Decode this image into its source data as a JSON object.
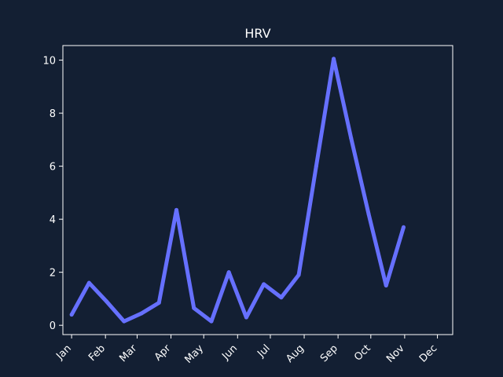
{
  "chart_data": {
    "type": "line",
    "title": "HRV",
    "xlabel": "",
    "ylabel": "",
    "x_tick_labels": [
      "Jan",
      "Feb",
      "Mar",
      "Apr",
      "May",
      "Jun",
      "Jul",
      "Aug",
      "Sep",
      "Oct",
      "Nov",
      "Dec"
    ],
    "y_ticks": [
      0,
      2,
      4,
      6,
      8,
      10
    ],
    "ylim": [
      -0.35,
      10.55
    ],
    "xlim": [
      "2023-12-24",
      "2024-12-15"
    ],
    "grid": false,
    "legend": "none",
    "series": [
      {
        "color": "#6670ff",
        "points": [
          {
            "date": "2024-01-01",
            "value": 0.4
          },
          {
            "date": "2024-01-17",
            "value": 1.6
          },
          {
            "date": "2024-02-02",
            "value": 0.9
          },
          {
            "date": "2024-02-18",
            "value": 0.15
          },
          {
            "date": "2024-03-05",
            "value": 0.45
          },
          {
            "date": "2024-03-21",
            "value": 0.85
          },
          {
            "date": "2024-04-06",
            "value": 4.35
          },
          {
            "date": "2024-04-22",
            "value": 0.65
          },
          {
            "date": "2024-05-08",
            "value": 0.15
          },
          {
            "date": "2024-05-24",
            "value": 2.0
          },
          {
            "date": "2024-06-09",
            "value": 0.3
          },
          {
            "date": "2024-06-25",
            "value": 1.55
          },
          {
            "date": "2024-07-11",
            "value": 1.05
          },
          {
            "date": "2024-07-27",
            "value": 1.9
          },
          {
            "date": "2024-08-12",
            "value": 6.0
          },
          {
            "date": "2024-08-28",
            "value": 10.05
          },
          {
            "date": "2024-09-13",
            "value": 7.05
          },
          {
            "date": "2024-09-29",
            "value": 4.2
          },
          {
            "date": "2024-10-15",
            "value": 1.5
          },
          {
            "date": "2024-10-31",
            "value": 3.7
          }
        ]
      }
    ],
    "colors": {
      "background": "#131f33",
      "axes": "#ffffff",
      "text": "#ffffff"
    }
  }
}
